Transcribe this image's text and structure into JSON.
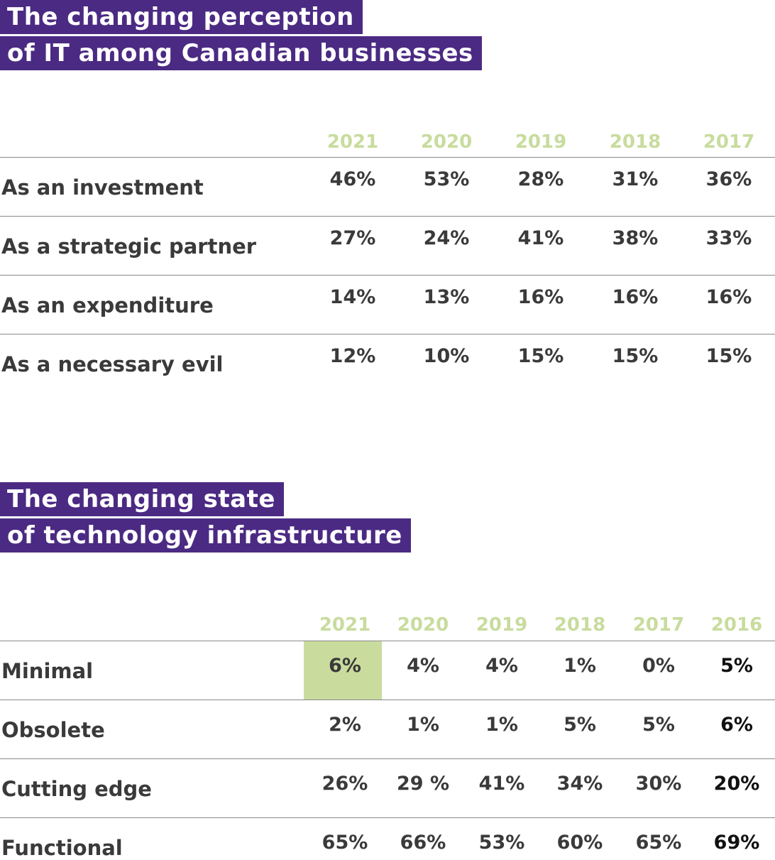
{
  "chart_data": [
    {
      "type": "table",
      "title": "The changing perception of IT among Canadian businesses",
      "title_lines": [
        "The changing perception",
        "of IT among Canadian businesses"
      ],
      "columns": [
        "2021",
        "2020",
        "2019",
        "2018",
        "2017"
      ],
      "rows": [
        {
          "label": "As an investment",
          "values": [
            "46%",
            "53%",
            "28%",
            "31%",
            "36%"
          ]
        },
        {
          "label": "As a strategic partner",
          "values": [
            "27%",
            "24%",
            "41%",
            "38%",
            "33%"
          ]
        },
        {
          "label": "As an expenditure",
          "values": [
            "14%",
            "13%",
            "16%",
            "16%",
            "16%"
          ]
        },
        {
          "label": "As a necessary evil",
          "values": [
            "12%",
            "10%",
            "15%",
            "15%",
            "15%"
          ]
        }
      ]
    },
    {
      "type": "table",
      "title": "The changing state of technology infrastructure",
      "title_lines": [
        "The changing state",
        "of technology infrastructure"
      ],
      "columns": [
        "2021",
        "2020",
        "2019",
        "2018",
        "2017",
        "2016"
      ],
      "rows": [
        {
          "label": "Minimal",
          "values": [
            "6%",
            "4%",
            "4%",
            "1%",
            "0%",
            "5%"
          ]
        },
        {
          "label": "Obsolete",
          "values": [
            "2%",
            "1%",
            "1%",
            "5%",
            "5%",
            "6%"
          ]
        },
        {
          "label": "Cutting edge",
          "values": [
            "26%",
            "29 %",
            "41%",
            "34%",
            "30%",
            "20%"
          ]
        },
        {
          "label": "Functional",
          "values": [
            "65%",
            "66%",
            "53%",
            "60%",
            "65%",
            "69%"
          ]
        }
      ],
      "highlighted_cell": {
        "row": "Minimal",
        "column": "2021"
      }
    }
  ],
  "colors": {
    "title_background": "#4b2a83",
    "title_text": "#ffffff",
    "year_header": "#c8dc9e",
    "highlight": "#c9dc9e",
    "body_text": "#3a3a3a",
    "rule": "#8a8a8a"
  }
}
